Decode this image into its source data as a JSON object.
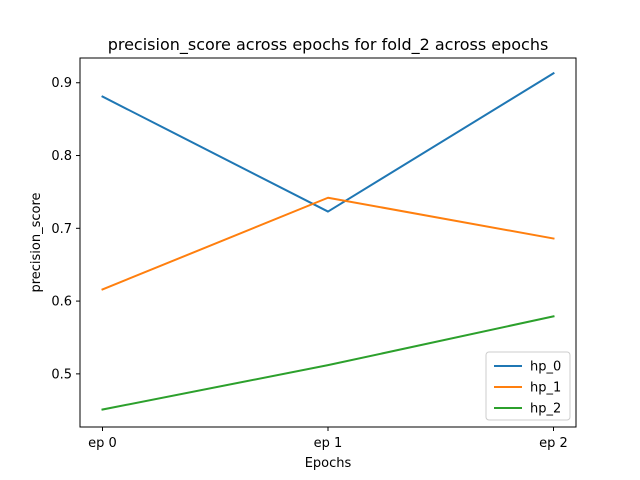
{
  "chart_data": {
    "type": "line",
    "title": "precision_score across epochs for fold_2 across epochs",
    "xlabel": "Epochs",
    "ylabel": "precision_score",
    "categories": [
      "ep 0",
      "ep 1",
      "ep 2"
    ],
    "ylim": [
      0.427,
      0.934
    ],
    "yticks": [
      0.5,
      0.6,
      0.7,
      0.8,
      0.9
    ],
    "grid": false,
    "legend_position": "lower-right",
    "series": [
      {
        "name": "hp_0",
        "color": "#1f77b4",
        "values": [
          0.881,
          0.723,
          0.913
        ]
      },
      {
        "name": "hp_1",
        "color": "#ff7f0e",
        "values": [
          0.616,
          0.742,
          0.686
        ]
      },
      {
        "name": "hp_2",
        "color": "#2ca02c",
        "values": [
          0.451,
          0.512,
          0.579
        ]
      }
    ]
  }
}
